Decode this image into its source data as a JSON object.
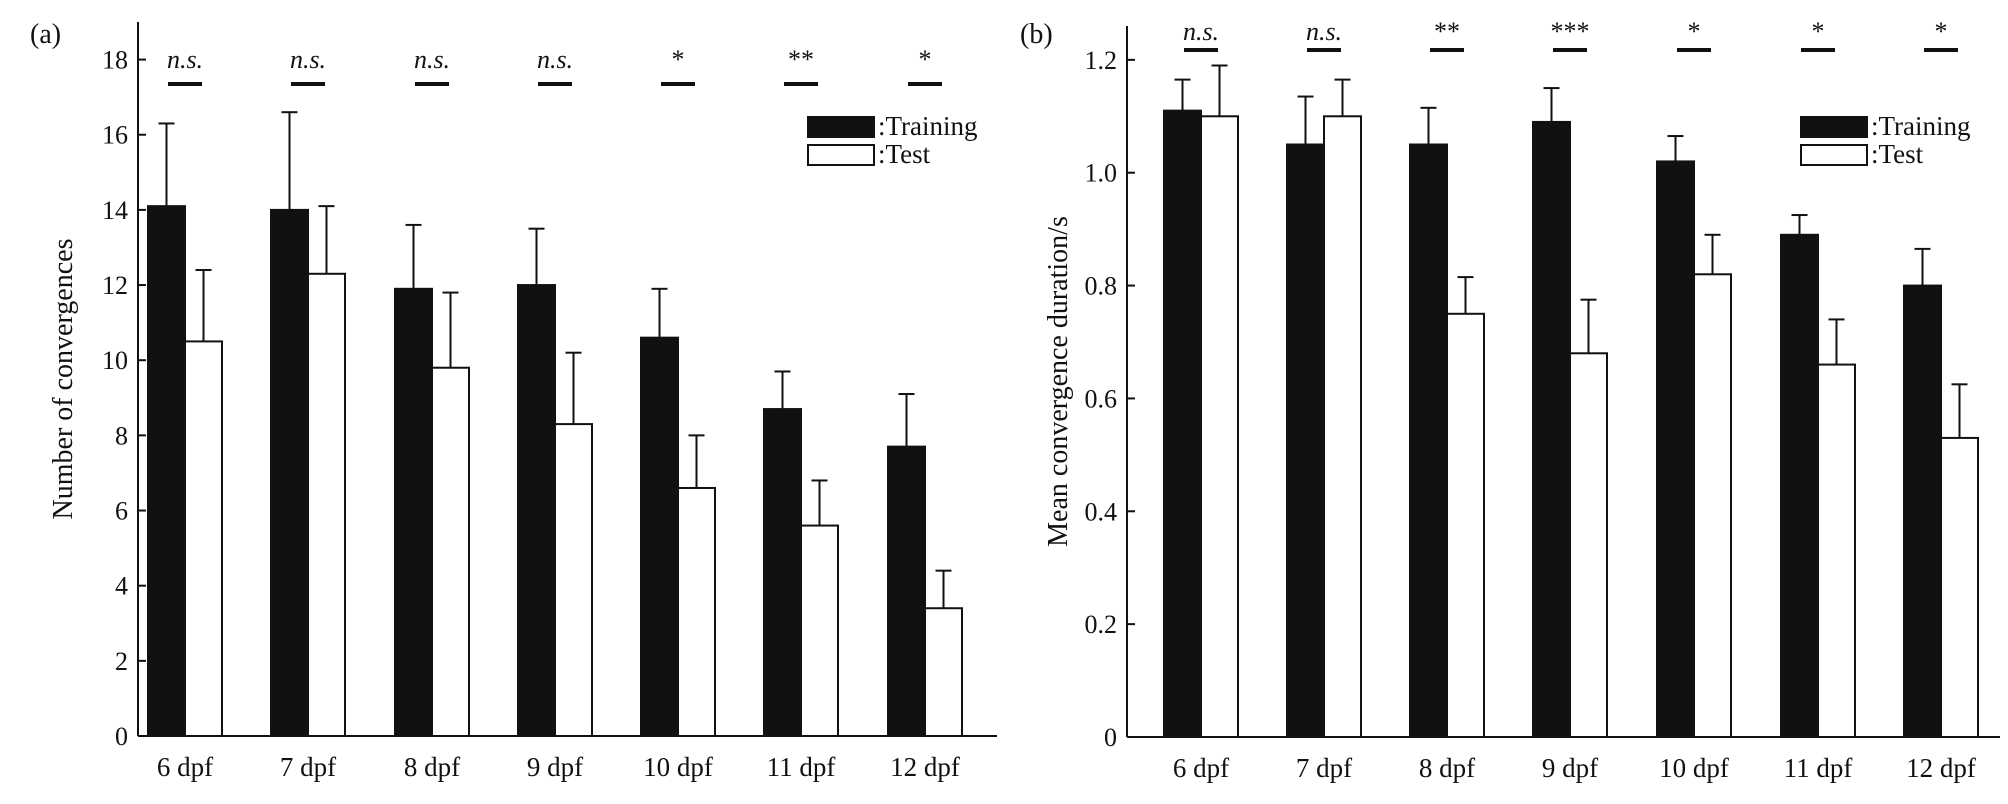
{
  "chart_data": [
    {
      "panel_label": "(a)",
      "type": "bar",
      "categories": [
        "6 dpf",
        "7 dpf",
        "8 dpf",
        "9 dpf",
        "10 dpf",
        "11 dpf",
        "12 dpf"
      ],
      "ylabel": "Number of convergences",
      "ylim": [
        0,
        19
      ],
      "yticks": [
        "0",
        "2",
        "4",
        "6",
        "8",
        "10",
        "12",
        "14",
        "16",
        "18"
      ],
      "series": [
        {
          "name": ":Training",
          "color": "#111111",
          "values": [
            14.1,
            14.0,
            11.9,
            12.0,
            10.6,
            8.7,
            7.7
          ],
          "errors": [
            2.2,
            2.6,
            1.7,
            1.5,
            1.3,
            1.0,
            1.4
          ]
        },
        {
          "name": ":Test",
          "color": "#ffffff",
          "values": [
            10.5,
            12.3,
            9.8,
            8.3,
            6.6,
            5.6,
            3.4
          ],
          "errors": [
            1.9,
            1.8,
            2.0,
            1.9,
            1.4,
            1.2,
            1.0
          ]
        }
      ],
      "significance": [
        "n.s.",
        "n.s.",
        "n.s.",
        "n.s.",
        "*",
        "**",
        "*"
      ],
      "legend": "top-right",
      "grid": false
    },
    {
      "panel_label": "(b)",
      "type": "bar",
      "categories": [
        "6 dpf",
        "7 dpf",
        "8 dpf",
        "9 dpf",
        "10 dpf",
        "11 dpf",
        "12 dpf"
      ],
      "ylabel": "Mean convergence duration/s",
      "ylim": [
        0,
        1.26
      ],
      "yticks": [
        "0",
        "0.2",
        "0.4",
        "0.6",
        "0.8",
        "1.0",
        "1.2"
      ],
      "series": [
        {
          "name": ":Training",
          "color": "#111111",
          "values": [
            1.11,
            1.05,
            1.05,
            1.09,
            1.02,
            0.89,
            0.8
          ],
          "errors": [
            0.055,
            0.085,
            0.065,
            0.06,
            0.045,
            0.035,
            0.065
          ]
        },
        {
          "name": ":Test",
          "color": "#ffffff",
          "values": [
            1.1,
            1.1,
            0.75,
            0.68,
            0.82,
            0.66,
            0.53
          ],
          "errors": [
            0.09,
            0.065,
            0.065,
            0.095,
            0.07,
            0.08,
            0.095
          ]
        }
      ],
      "significance": [
        "n.s.",
        "n.s.",
        "**",
        "***",
        "*",
        "*",
        "*"
      ],
      "legend": "top-right",
      "grid": false
    }
  ]
}
